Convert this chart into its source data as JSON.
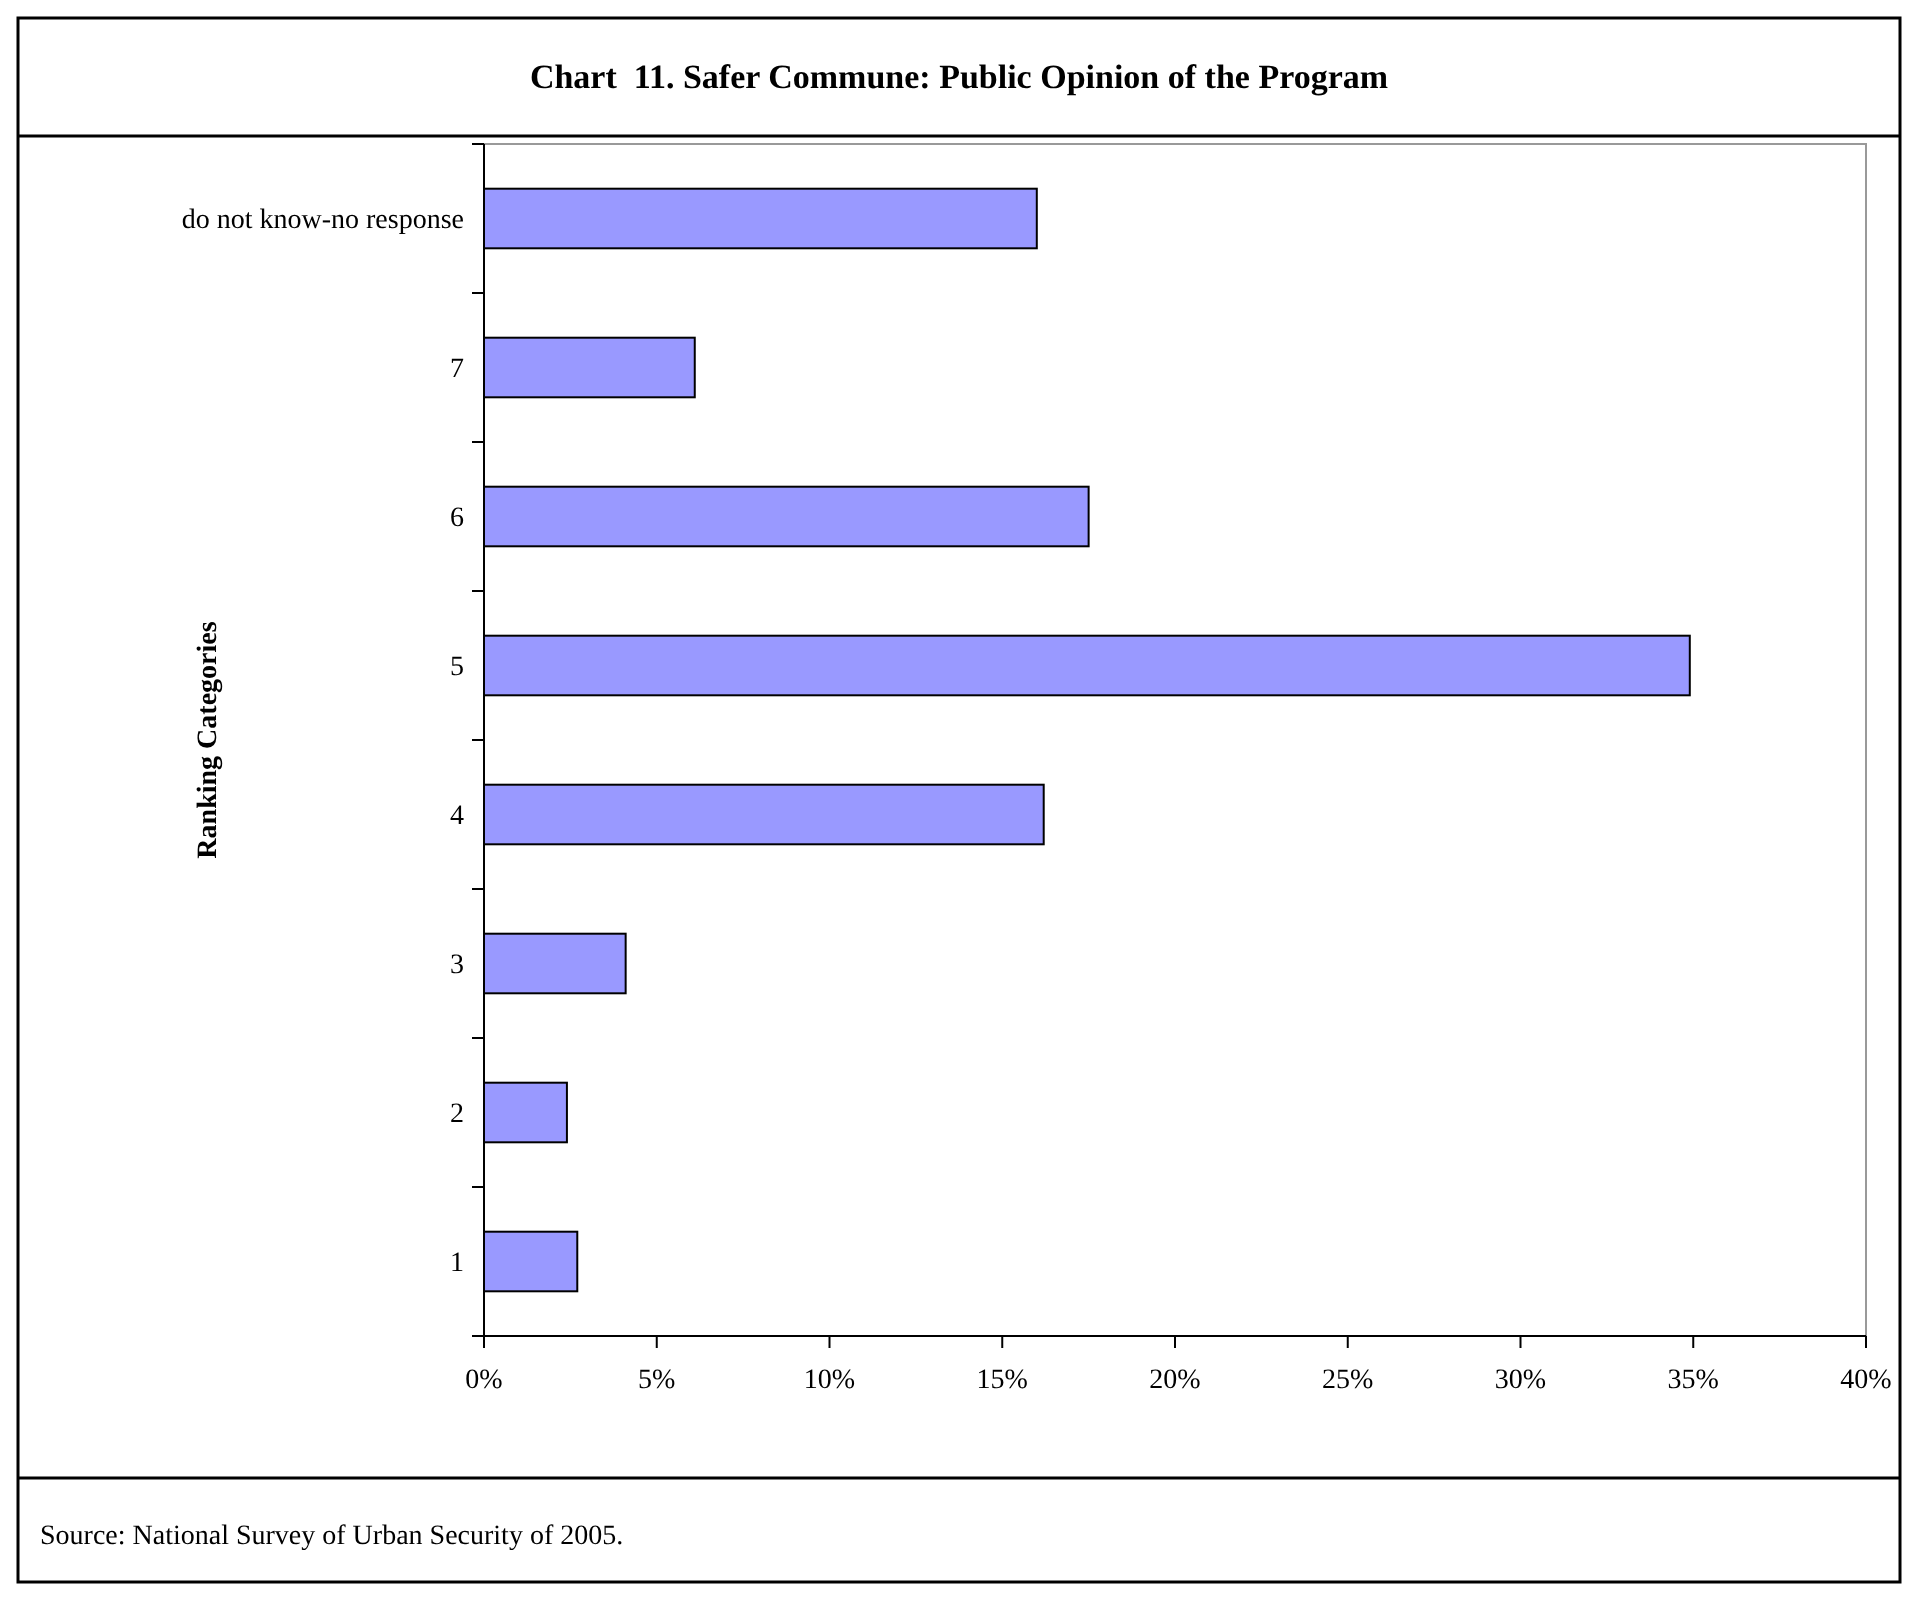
{
  "chart_data": {
    "type": "bar",
    "orientation": "horizontal",
    "title": "Chart  11. Safer Commune: Public Opinion of the Program",
    "ylabel": "Ranking Categories",
    "categories": [
      "do not know-no response",
      "7",
      "6",
      "5",
      "4",
      "3",
      "2",
      "1"
    ],
    "values": [
      16.0,
      6.1,
      17.5,
      34.9,
      16.2,
      4.1,
      2.4,
      2.7
    ],
    "color": "#9999ff",
    "xlim": [
      0,
      40
    ],
    "xticks": [
      {
        "value": 0,
        "label": "0%"
      },
      {
        "value": 5,
        "label": "5%"
      },
      {
        "value": 10,
        "label": "10%"
      },
      {
        "value": 15,
        "label": "15%"
      },
      {
        "value": 20,
        "label": "20%"
      },
      {
        "value": 25,
        "label": "25%"
      },
      {
        "value": 30,
        "label": "30%"
      },
      {
        "value": 35,
        "label": "35%"
      },
      {
        "value": 40,
        "label": "40%"
      }
    ],
    "grid": false,
    "annotations": [
      "Source: National Survey of Urban Security of 2005."
    ]
  }
}
